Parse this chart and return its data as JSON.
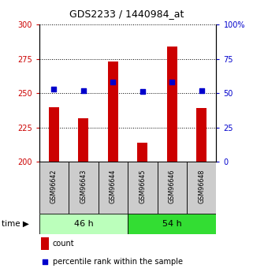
{
  "title": "GDS2233 / 1440984_at",
  "samples": [
    "GSM96642",
    "GSM96643",
    "GSM96644",
    "GSM96645",
    "GSM96646",
    "GSM96648"
  ],
  "counts": [
    240,
    232,
    273,
    214,
    284,
    239
  ],
  "percentiles": [
    53,
    52,
    58,
    51,
    58,
    52
  ],
  "group_labels": [
    "46 h",
    "54 h"
  ],
  "group_ranges": [
    [
      0,
      3
    ],
    [
      3,
      6
    ]
  ],
  "ylim_left": [
    200,
    300
  ],
  "ylim_right": [
    0,
    100
  ],
  "yticks_left": [
    200,
    225,
    250,
    275,
    300
  ],
  "yticks_right": [
    0,
    25,
    50,
    75,
    100
  ],
  "bar_color": "#cc0000",
  "dot_color": "#0000cc",
  "bar_width": 0.35,
  "axis_color_left": "#cc0000",
  "axis_color_right": "#0000cc",
  "group_bg_light": "#bbffbb",
  "group_bg_dark": "#33dd33",
  "sample_bg": "#cccccc",
  "legend_bar_label": "count",
  "legend_dot_label": "percentile rank within the sample",
  "bg_color": "#ffffff"
}
